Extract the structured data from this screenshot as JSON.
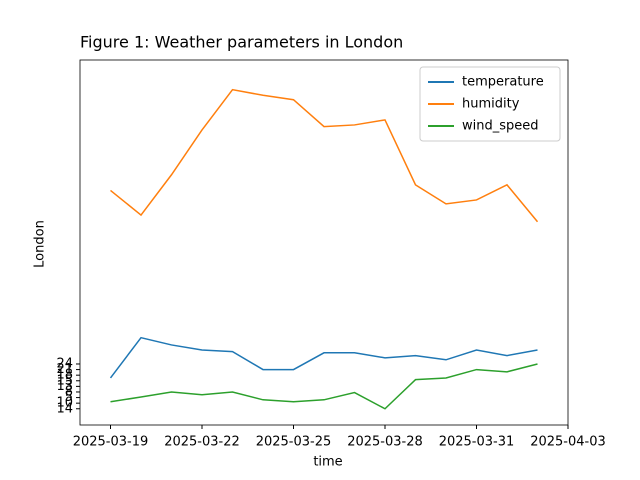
{
  "chart_data": {
    "type": "line",
    "title": "Figure 1: Weather parameters in London",
    "x_label": "time",
    "y_label": "London",
    "x": [
      "2025-03-19",
      "2025-03-20",
      "2025-03-21",
      "2025-03-22",
      "2025-03-23",
      "2025-03-24",
      "2025-03-25",
      "2025-03-26",
      "2025-03-27",
      "2025-03-28",
      "2025-03-29",
      "2025-03-30",
      "2025-03-31",
      "2025-04-01",
      "2025-04-02"
    ],
    "series": [
      {
        "name": "temperature",
        "color": "#1f77b4",
        "values": [
          5.5,
          12.7,
          11.4,
          10.5,
          10.2,
          7,
          7,
          10,
          10,
          9.1,
          9.5,
          8.75,
          10.5,
          9.5,
          10.5
        ]
      },
      {
        "name": "humidity",
        "color": "#ff7f0e",
        "values": [
          39,
          34.6,
          41.8,
          49.8,
          57,
          56,
          55.2,
          50.4,
          50.7,
          51.6,
          40,
          36.6,
          37.3,
          40,
          33.4
        ]
      },
      {
        "name": "wind_speed",
        "color": "#2ca02c",
        "values": [
          1.25,
          2.1,
          3,
          2.5,
          3,
          1.6,
          1.25,
          1.6,
          2.9,
          0,
          5.2,
          5.5,
          7,
          6.6,
          8
        ]
      }
    ],
    "xlim": [
      "2025-03-18",
      "2025-04-03"
    ],
    "xticks": [
      "2025-03-19",
      "2025-03-22",
      "2025-03-25",
      "2025-03-28",
      "2025-03-31",
      "2025-04-03"
    ],
    "ylim": [
      -2.9,
      62.3
    ],
    "yticks": [
      {
        "value": 0,
        "label": "14"
      },
      {
        "value": 1,
        "label": "10"
      },
      {
        "value": 2,
        "label": "5"
      },
      {
        "value": 3,
        "label": "8"
      },
      {
        "value": 4,
        "label": "13"
      },
      {
        "value": 5,
        "label": "15"
      },
      {
        "value": 6,
        "label": "18"
      },
      {
        "value": 7,
        "label": "21"
      },
      {
        "value": 8,
        "label": "24"
      }
    ],
    "legend": "upper right",
    "grid": false
  }
}
